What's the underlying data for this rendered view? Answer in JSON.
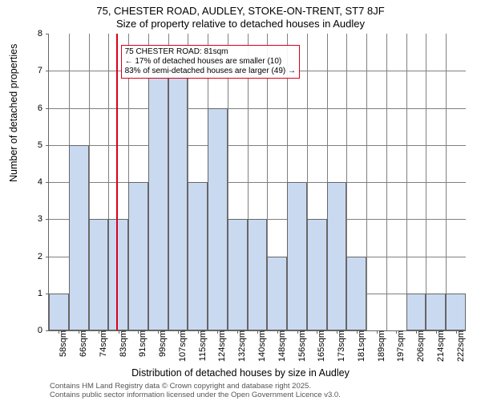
{
  "title_line1": "75, CHESTER ROAD, AUDLEY, STOKE-ON-TRENT, ST7 8JF",
  "title_line2": "Size of property relative to detached houses in Audley",
  "ylabel": "Number of detached properties",
  "xlabel": "Distribution of detached houses by size in Audley",
  "attribution_line1": "Contains HM Land Registry data © Crown copyright and database right 2025.",
  "attribution_line2": "Contains public sector information licensed under the Open Government Licence v3.0.",
  "chart": {
    "type": "histogram",
    "ylim": [
      0,
      8
    ],
    "ytick_step": 1,
    "bar_color": "#c9d9f0",
    "bar_border": "#666666",
    "grid_color": "#808080",
    "background_color": "#ffffff",
    "marker_color": "#d9001b",
    "marker_x_value": 81,
    "marker_box": {
      "line1": "75 CHESTER ROAD: 81sqm",
      "line2": "← 17% of detached houses are smaller (10)",
      "line3": "83% of semi-detached houses are larger (49) →"
    },
    "x_start": 54,
    "x_step": 8,
    "categories": [
      "58sqm",
      "66sqm",
      "74sqm",
      "83sqm",
      "91sqm",
      "99sqm",
      "107sqm",
      "115sqm",
      "124sqm",
      "132sqm",
      "140sqm",
      "148sqm",
      "156sqm",
      "165sqm",
      "173sqm",
      "181sqm",
      "189sqm",
      "197sqm",
      "206sqm",
      "214sqm",
      "222sqm"
    ],
    "values": [
      1,
      5,
      3,
      3,
      4,
      7,
      7,
      4,
      6,
      3,
      3,
      2,
      4,
      3,
      4,
      2,
      0,
      0,
      1,
      1,
      1
    ]
  }
}
